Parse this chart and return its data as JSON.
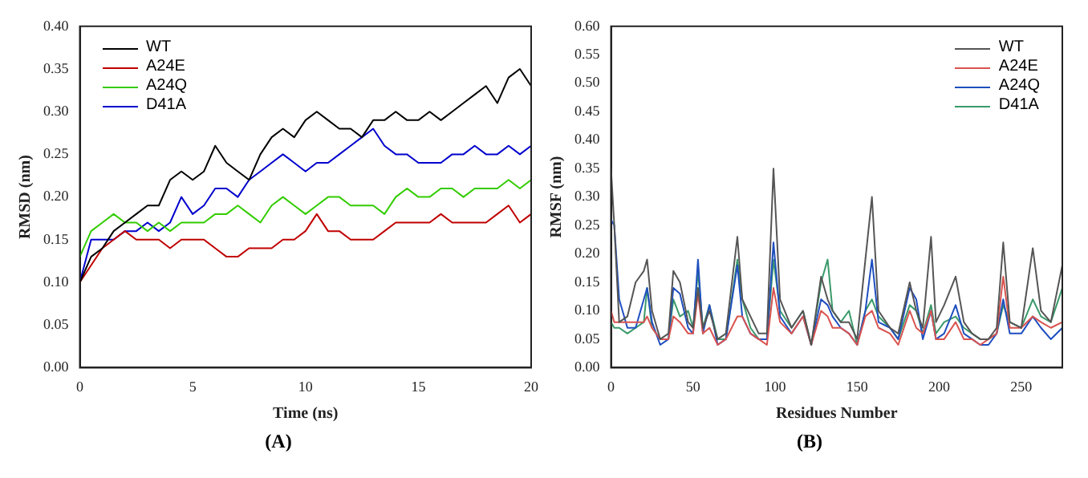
{
  "chart_data": [
    {
      "type": "line",
      "xlabel": "Time (ns)",
      "ylabel": "RMSD (nm)",
      "annotations": [
        "(A)"
      ],
      "legend": "top left",
      "marker": "none",
      "grid": false,
      "x": [
        0,
        0.5,
        1,
        1.5,
        2,
        2.5,
        3,
        3.5,
        4,
        4.5,
        5,
        5.5,
        6,
        6.5,
        7,
        7.5,
        8,
        8.5,
        9,
        9.5,
        10,
        10.5,
        11,
        11.5,
        12,
        12.5,
        13,
        13.5,
        14,
        14.5,
        15,
        15.5,
        16,
        16.5,
        17,
        17.5,
        18,
        18.5,
        19,
        19.5,
        20
      ],
      "series": [
        {
          "name": "WT",
          "color": "#000000",
          "values": [
            0.1,
            0.13,
            0.14,
            0.16,
            0.17,
            0.18,
            0.19,
            0.19,
            0.22,
            0.23,
            0.22,
            0.23,
            0.26,
            0.24,
            0.23,
            0.22,
            0.25,
            0.27,
            0.28,
            0.27,
            0.29,
            0.3,
            0.29,
            0.28,
            0.28,
            0.27,
            0.29,
            0.29,
            0.3,
            0.29,
            0.29,
            0.3,
            0.29,
            0.3,
            0.31,
            0.32,
            0.33,
            0.31,
            0.34,
            0.35,
            0.33
          ]
        },
        {
          "name": "A24E",
          "color": "#c00000",
          "values": [
            0.1,
            0.12,
            0.14,
            0.15,
            0.16,
            0.15,
            0.15,
            0.15,
            0.14,
            0.15,
            0.15,
            0.15,
            0.14,
            0.13,
            0.13,
            0.14,
            0.14,
            0.14,
            0.15,
            0.15,
            0.16,
            0.18,
            0.16,
            0.16,
            0.15,
            0.15,
            0.15,
            0.16,
            0.17,
            0.17,
            0.17,
            0.17,
            0.18,
            0.17,
            0.17,
            0.17,
            0.17,
            0.18,
            0.19,
            0.17,
            0.18
          ]
        },
        {
          "name": "A24Q",
          "color": "#33cc00",
          "values": [
            0.13,
            0.16,
            0.17,
            0.18,
            0.17,
            0.17,
            0.16,
            0.17,
            0.16,
            0.17,
            0.17,
            0.17,
            0.18,
            0.18,
            0.19,
            0.18,
            0.17,
            0.19,
            0.2,
            0.19,
            0.18,
            0.19,
            0.2,
            0.2,
            0.19,
            0.19,
            0.19,
            0.18,
            0.2,
            0.21,
            0.2,
            0.2,
            0.21,
            0.21,
            0.2,
            0.21,
            0.21,
            0.21,
            0.22,
            0.21,
            0.22
          ]
        },
        {
          "name": "D41A",
          "color": "#0000cc",
          "values": [
            0.1,
            0.15,
            0.15,
            0.15,
            0.16,
            0.16,
            0.17,
            0.16,
            0.17,
            0.2,
            0.18,
            0.19,
            0.21,
            0.21,
            0.2,
            0.22,
            0.23,
            0.24,
            0.25,
            0.24,
            0.23,
            0.24,
            0.24,
            0.25,
            0.26,
            0.27,
            0.28,
            0.26,
            0.25,
            0.25,
            0.24,
            0.24,
            0.24,
            0.25,
            0.25,
            0.26,
            0.25,
            0.25,
            0.26,
            0.25,
            0.26
          ]
        }
      ],
      "xlim": [
        0,
        20
      ],
      "xticks": [
        0,
        5,
        10,
        15,
        20
      ],
      "ylim": [
        0,
        0.4
      ],
      "yticks": [
        {
          "value": 0,
          "label": "0.00"
        },
        {
          "value": 0.05,
          "label": "0.05"
        },
        {
          "value": 0.1,
          "label": "0.10"
        },
        {
          "value": 0.15,
          "label": "0.15"
        },
        {
          "value": 0.2,
          "label": "0.20"
        },
        {
          "value": 0.25,
          "label": "0.25"
        },
        {
          "value": 0.3,
          "label": "0.30"
        },
        {
          "value": 0.35,
          "label": "0.35"
        },
        {
          "value": 0.4,
          "label": "0.40"
        }
      ]
    },
    {
      "type": "line",
      "xlabel": "Residues Number",
      "ylabel": "RMSF (nm)",
      "annotations": [
        "(B)"
      ],
      "legend": "top right",
      "marker": "none",
      "grid": false,
      "x": [
        0,
        2,
        5,
        10,
        15,
        20,
        22,
        25,
        30,
        35,
        38,
        42,
        47,
        50,
        53,
        56,
        60,
        65,
        70,
        77,
        80,
        85,
        90,
        95,
        99,
        103,
        110,
        117,
        122,
        128,
        132,
        135,
        140,
        145,
        150,
        155,
        159,
        163,
        170,
        175,
        182,
        186,
        190,
        195,
        198,
        203,
        210,
        215,
        220,
        225,
        230,
        235,
        239,
        243,
        250,
        257,
        262,
        268,
        275
      ],
      "series": [
        {
          "name": "WT",
          "color": "#555555",
          "values": [
            0.35,
            0.25,
            0.08,
            0.09,
            0.15,
            0.17,
            0.19,
            0.1,
            0.05,
            0.06,
            0.17,
            0.15,
            0.08,
            0.07,
            0.14,
            0.07,
            0.1,
            0.05,
            0.06,
            0.23,
            0.12,
            0.09,
            0.06,
            0.06,
            0.35,
            0.12,
            0.07,
            0.1,
            0.04,
            0.16,
            0.12,
            0.1,
            0.08,
            0.08,
            0.05,
            0.19,
            0.3,
            0.1,
            0.07,
            0.06,
            0.15,
            0.1,
            0.07,
            0.23,
            0.08,
            0.11,
            0.16,
            0.08,
            0.06,
            0.05,
            0.05,
            0.07,
            0.22,
            0.08,
            0.07,
            0.21,
            0.1,
            0.08,
            0.18
          ]
        },
        {
          "name": "A24E",
          "color": "#d9534f",
          "values": [
            0.1,
            0.08,
            0.08,
            0.08,
            0.08,
            0.08,
            0.09,
            0.07,
            0.05,
            0.05,
            0.09,
            0.08,
            0.06,
            0.06,
            0.13,
            0.06,
            0.07,
            0.04,
            0.05,
            0.09,
            0.09,
            0.06,
            0.05,
            0.04,
            0.14,
            0.08,
            0.06,
            0.09,
            0.04,
            0.1,
            0.09,
            0.07,
            0.07,
            0.06,
            0.04,
            0.09,
            0.1,
            0.07,
            0.06,
            0.04,
            0.1,
            0.07,
            0.06,
            0.1,
            0.05,
            0.05,
            0.08,
            0.05,
            0.05,
            0.04,
            0.05,
            0.06,
            0.16,
            0.07,
            0.07,
            0.09,
            0.08,
            0.07,
            0.08
          ]
        },
        {
          "name": "A24Q",
          "color": "#1f4fbf",
          "values": [
            0.26,
            0.25,
            0.12,
            0.07,
            0.07,
            0.12,
            0.14,
            0.08,
            0.04,
            0.05,
            0.14,
            0.13,
            0.07,
            0.06,
            0.19,
            0.06,
            0.11,
            0.04,
            0.05,
            0.18,
            0.09,
            0.06,
            0.05,
            0.05,
            0.22,
            0.09,
            0.06,
            0.09,
            0.04,
            0.12,
            0.11,
            0.09,
            0.07,
            0.06,
            0.04,
            0.1,
            0.19,
            0.08,
            0.07,
            0.05,
            0.14,
            0.12,
            0.05,
            0.1,
            0.05,
            0.06,
            0.11,
            0.06,
            0.05,
            0.04,
            0.04,
            0.06,
            0.12,
            0.06,
            0.06,
            0.09,
            0.07,
            0.05,
            0.07
          ]
        },
        {
          "name": "D41A",
          "color": "#3a9a6a",
          "values": [
            0.08,
            0.07,
            0.07,
            0.06,
            0.07,
            0.08,
            0.14,
            0.07,
            0.05,
            0.05,
            0.12,
            0.09,
            0.1,
            0.07,
            0.17,
            0.07,
            0.11,
            0.05,
            0.05,
            0.19,
            0.12,
            0.07,
            0.05,
            0.05,
            0.19,
            0.1,
            0.07,
            0.1,
            0.04,
            0.15,
            0.19,
            0.1,
            0.08,
            0.1,
            0.04,
            0.1,
            0.12,
            0.09,
            0.07,
            0.05,
            0.11,
            0.1,
            0.06,
            0.11,
            0.06,
            0.08,
            0.09,
            0.07,
            0.06,
            0.05,
            0.05,
            0.06,
            0.11,
            0.08,
            0.07,
            0.12,
            0.09,
            0.08,
            0.14
          ]
        }
      ],
      "xlim": [
        0,
        275
      ],
      "xticks": [
        0,
        50,
        100,
        150,
        200,
        250
      ],
      "ylim": [
        0,
        0.6
      ],
      "yticks": [
        {
          "value": 0,
          "label": "0.00"
        },
        {
          "value": 0.05,
          "label": "0.05"
        },
        {
          "value": 0.1,
          "label": "0.10"
        },
        {
          "value": 0.15,
          "label": "0.15"
        },
        {
          "value": 0.2,
          "label": "0.20"
        },
        {
          "value": 0.25,
          "label": "0.25"
        },
        {
          "value": 0.3,
          "label": "0.30"
        },
        {
          "value": 0.35,
          "label": "0.35"
        },
        {
          "value": 0.4,
          "label": "0.40"
        },
        {
          "value": 0.45,
          "label": "0.45"
        },
        {
          "value": 0.5,
          "label": "0.50"
        },
        {
          "value": 0.55,
          "label": "0.55"
        },
        {
          "value": 0.6,
          "label": "0.60"
        }
      ]
    }
  ]
}
